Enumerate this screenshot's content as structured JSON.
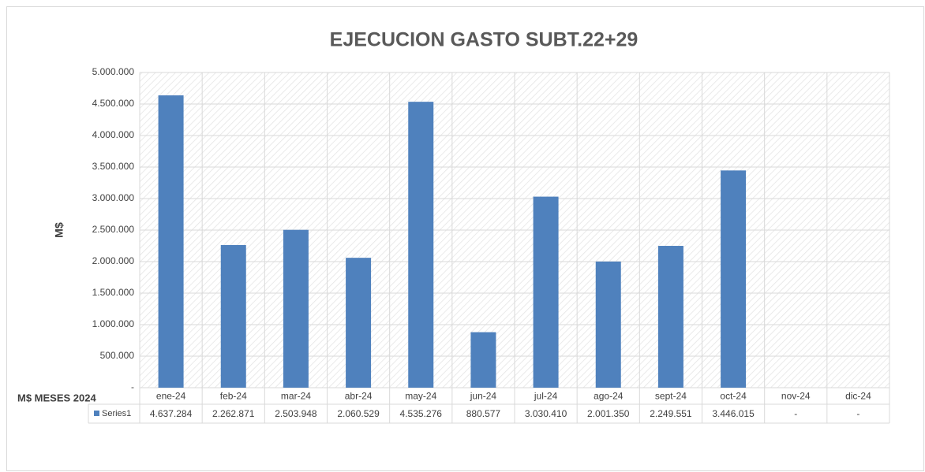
{
  "chart_data": {
    "type": "bar",
    "title": "EJECUCION GASTO SUBT.22+29",
    "y_label": "M$",
    "x_label": "M$ MESES 2024",
    "categories": [
      "ene-24",
      "feb-24",
      "mar-24",
      "abr-24",
      "may-24",
      "jun-24",
      "jul-24",
      "ago-24",
      "sept-24",
      "oct-24",
      "nov-24",
      "dic-24"
    ],
    "series": [
      {
        "name": "Series1",
        "color": "#4f81bd",
        "values": [
          4637284,
          2262871,
          2503948,
          2060529,
          4535276,
          880577,
          3030410,
          2001350,
          2249551,
          3446015,
          null,
          null
        ],
        "value_labels": [
          "4.637.284",
          "2.262.871",
          "2.503.948",
          "2.060.529",
          "4.535.276",
          "880.577",
          "3.030.410",
          "2.001.350",
          "2.249.551",
          "3.446.015",
          "-",
          "-"
        ]
      }
    ],
    "ylim": [
      0,
      5000000
    ],
    "yticks": [
      {
        "value": 0,
        "label": "-"
      },
      {
        "value": 500000,
        "label": "500.000"
      },
      {
        "value": 1000000,
        "label": "1.000.000"
      },
      {
        "value": 1500000,
        "label": "1.500.000"
      },
      {
        "value": 2000000,
        "label": "2.000.000"
      },
      {
        "value": 2500000,
        "label": "2.500.000"
      },
      {
        "value": 3000000,
        "label": "3.000.000"
      },
      {
        "value": 3500000,
        "label": "3.500.000"
      },
      {
        "value": 4000000,
        "label": "4.000.000"
      },
      {
        "value": 4500000,
        "label": "4.500.000"
      },
      {
        "value": 5000000,
        "label": "5.000.000"
      }
    ],
    "grid": true
  }
}
